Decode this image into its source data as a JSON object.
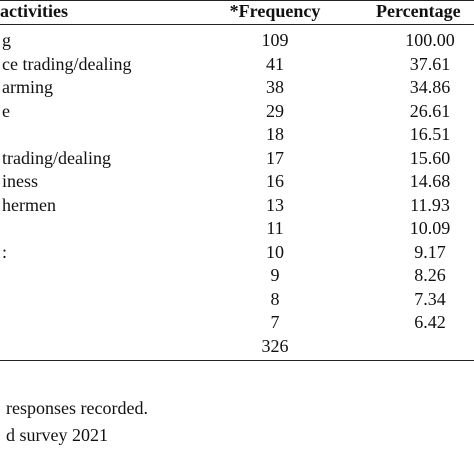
{
  "table": {
    "header": [
      "activities",
      "*Frequency",
      "Percentage"
    ],
    "rows": [
      [
        "g",
        109,
        "100.00"
      ],
      [
        "ce trading/dealing",
        41,
        "37.61"
      ],
      [
        "arming",
        38,
        "34.86"
      ],
      [
        "e",
        29,
        "26.61"
      ],
      [
        null,
        18,
        "16.51"
      ],
      [
        "trading/dealing",
        17,
        "15.60"
      ],
      [
        "iness",
        16,
        "14.68"
      ],
      [
        "hermen",
        13,
        "11.93"
      ],
      [
        null,
        11,
        "10.09"
      ],
      [
        ":",
        10,
        "9.17"
      ],
      [
        null,
        9,
        "8.26"
      ],
      [
        null,
        8,
        "7.34"
      ],
      [
        null,
        7,
        "6.42"
      ],
      [
        null,
        326,
        null
      ]
    ]
  },
  "notes": [
    "responses recorded.",
    "d survey 2021"
  ]
}
